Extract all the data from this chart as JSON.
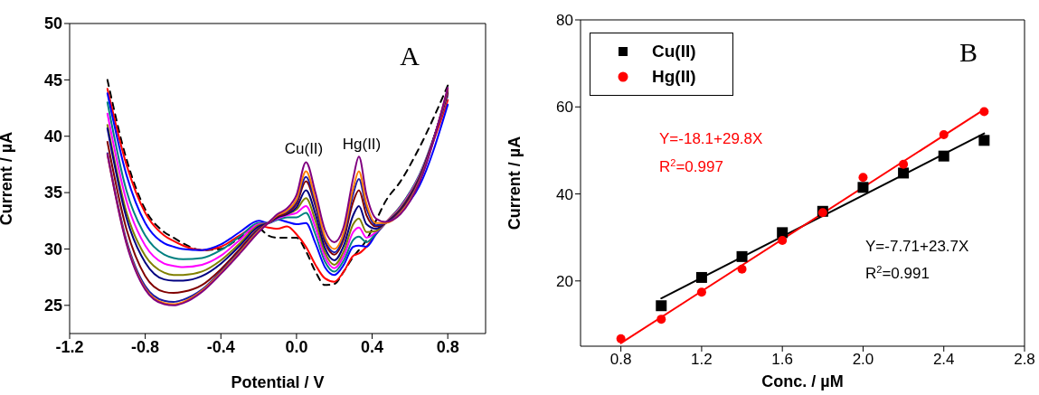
{
  "chart_data": [
    {
      "type": "line",
      "xlabel": "Potential / V",
      "ylabel": "Current / µA",
      "xlim": [
        -1.2,
        1.0
      ],
      "xticks": [
        -1.2,
        -0.8,
        -0.4,
        {
          "value": 0.0,
          "label": "0.0"
        },
        0.4,
        0.8
      ],
      "ylim": [
        22.5,
        50
      ],
      "yticks": [
        25,
        30,
        35,
        40,
        45,
        50
      ],
      "marker": "none",
      "legend": false,
      "x": [
        -1.0,
        -0.9,
        -0.8,
        -0.7,
        -0.65,
        -0.6,
        -0.5,
        -0.4,
        -0.3,
        -0.2,
        -0.15,
        -0.1,
        -0.05,
        0.0,
        0.05,
        0.1,
        0.15,
        0.2,
        0.25,
        0.3,
        0.33,
        0.37,
        0.42,
        0.47,
        0.55,
        0.65,
        0.8
      ],
      "series": [
        {
          "color": "#000000",
          "line_style": "dashed",
          "values": [
            45.0,
            38.0,
            33.5,
            31.5,
            31.0,
            30.5,
            29.9,
            30.0,
            31.0,
            31.8,
            31.2,
            31.0,
            31.0,
            31.0,
            29.8,
            28.0,
            26.8,
            26.9,
            28.0,
            29.3,
            29.9,
            30.8,
            32.5,
            34.2,
            36.0,
            39.0,
            44.5
          ]
        },
        {
          "color": "#ff0000",
          "values": [
            44.2,
            37.5,
            33.2,
            31.2,
            30.7,
            30.3,
            29.9,
            30.2,
            31.2,
            32.1,
            31.9,
            31.8,
            32.0,
            31.3,
            30.2,
            28.6,
            27.4,
            27.1,
            28.0,
            29.4,
            29.6,
            30.2,
            31.3,
            32.3,
            33.8,
            36.5,
            43.2
          ]
        },
        {
          "color": "#0000ff",
          "values": [
            43.8,
            36.6,
            32.3,
            30.5,
            30.2,
            30.0,
            29.9,
            30.4,
            31.5,
            32.5,
            32.3,
            32.6,
            32.4,
            32.2,
            32.3,
            30.5,
            28.4,
            27.7,
            28.6,
            30.2,
            30.3,
            30.2,
            31.3,
            32.3,
            33.3,
            35.6,
            42.8
          ]
        },
        {
          "color": "#008080",
          "values": [
            43.0,
            35.2,
            31.2,
            29.5,
            29.2,
            29.1,
            29.2,
            29.9,
            31.1,
            32.3,
            32.3,
            32.6,
            32.8,
            32.8,
            33.2,
            31.3,
            28.9,
            28.0,
            29.0,
            30.8,
            31.1,
            30.6,
            31.4,
            32.3,
            33.8,
            36.6,
            43.6
          ]
        },
        {
          "color": "#ff00ff",
          "values": [
            42.0,
            34.3,
            30.3,
            28.7,
            28.5,
            28.4,
            28.6,
            29.4,
            30.8,
            32.2,
            32.3,
            32.7,
            33.0,
            33.2,
            33.8,
            31.9,
            29.3,
            28.3,
            29.4,
            31.5,
            31.9,
            31.0,
            31.5,
            32.3,
            33.7,
            36.5,
            43.7
          ]
        },
        {
          "color": "#808000",
          "values": [
            41.0,
            33.3,
            29.4,
            27.9,
            27.7,
            27.7,
            28.0,
            29.0,
            30.5,
            32.1,
            32.3,
            32.8,
            33.1,
            33.5,
            34.5,
            32.5,
            29.7,
            28.6,
            29.8,
            32.2,
            32.7,
            31.5,
            31.6,
            32.3,
            33.6,
            36.4,
            43.8
          ]
        },
        {
          "color": "#000080",
          "values": [
            40.7,
            32.8,
            28.8,
            27.3,
            27.2,
            27.2,
            27.6,
            28.7,
            30.3,
            32.0,
            32.3,
            32.8,
            33.1,
            33.7,
            35.2,
            33.1,
            30.1,
            29.0,
            30.3,
            33.0,
            33.8,
            32.2,
            31.8,
            32.3,
            33.5,
            36.3,
            43.9
          ]
        },
        {
          "color": "#800000",
          "values": [
            39.5,
            31.8,
            27.6,
            26.2,
            26.1,
            26.2,
            26.8,
            28.2,
            30.0,
            31.8,
            32.3,
            32.9,
            33.2,
            34.0,
            36.0,
            33.8,
            30.6,
            29.5,
            30.9,
            34.2,
            35.2,
            33.0,
            32.0,
            32.3,
            33.4,
            36.2,
            44.0
          ]
        },
        {
          "color": "#1a1aa6",
          "values": [
            38.5,
            30.8,
            26.7,
            25.4,
            25.3,
            25.5,
            26.4,
            28.0,
            29.8,
            31.7,
            32.3,
            33.0,
            33.3,
            34.2,
            36.4,
            34.0,
            30.8,
            29.7,
            31.2,
            34.9,
            36.2,
            33.6,
            32.1,
            32.3,
            33.3,
            36.1,
            44.1
          ]
        },
        {
          "color": "#ff8000",
          "values": [
            38.4,
            30.6,
            26.5,
            25.2,
            25.1,
            25.3,
            26.3,
            27.9,
            29.7,
            31.6,
            32.3,
            33.0,
            33.4,
            34.4,
            36.9,
            34.4,
            31.1,
            30.0,
            31.5,
            35.4,
            36.9,
            34.0,
            32.3,
            32.3,
            33.2,
            36.0,
            44.2
          ]
        },
        {
          "color": "#800080",
          "values": [
            38.4,
            30.5,
            26.4,
            25.1,
            25.0,
            25.2,
            26.2,
            27.8,
            29.6,
            31.5,
            32.3,
            33.1,
            33.6,
            34.8,
            37.7,
            35.0,
            31.7,
            30.6,
            32.0,
            36.3,
            38.2,
            34.8,
            32.7,
            32.4,
            33.1,
            35.9,
            44.3
          ]
        }
      ],
      "annotations": [
        "A",
        "Cu(II)",
        "Hg(II)"
      ]
    },
    {
      "type": "scatter",
      "xlabel": "Conc. / µM",
      "ylabel": "Current / µA",
      "xlim": [
        0.6,
        2.8
      ],
      "xticks": [
        0.8,
        1.2,
        1.6,
        {
          "value": 2.0,
          "label": "2.0"
        },
        2.4,
        2.8
      ],
      "ylim": [
        5,
        80
      ],
      "yticks": [
        20,
        40,
        60,
        80
      ],
      "legend": "top left",
      "x": [
        0.8,
        1.0,
        1.2,
        1.4,
        1.6,
        1.8,
        2.0,
        2.2,
        2.4,
        2.6
      ],
      "series": [
        {
          "name": "Cu(II)",
          "color": "#000000",
          "marker": "square",
          "values": [
            null,
            14.3,
            20.8,
            25.6,
            31.1,
            36.0,
            41.5,
            44.8,
            48.7,
            52.3
          ]
        },
        {
          "name": "Hg(II)",
          "color": "#ff0000",
          "marker": "circle",
          "values": [
            6.7,
            11.2,
            17.4,
            22.7,
            29.3,
            35.7,
            43.8,
            46.8,
            53.6,
            58.9
          ]
        },
        {
          "type": "line",
          "color": "#000000",
          "marker": "none",
          "x": [
            1.0,
            2.6
          ],
          "values": [
            16.0,
            53.9
          ]
        },
        {
          "type": "line",
          "color": "#ff0000",
          "marker": "none",
          "x": [
            0.8,
            2.6
          ],
          "values": [
            5.7,
            59.4
          ]
        }
      ],
      "annotations": [
        "B",
        "Y=-18.1+29.8X",
        "R$^{2}$=0.997",
        "Y=-7.71+23.7X",
        "R$^{2}$=0.991"
      ]
    }
  ]
}
